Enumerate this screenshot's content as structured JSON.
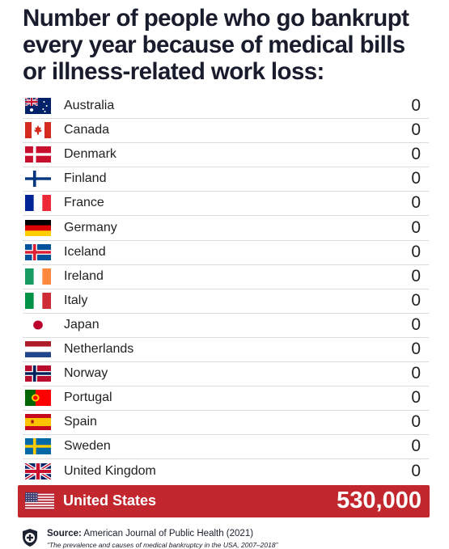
{
  "title": [
    "Number of people who go bankrupt",
    "every year because of medical bills",
    "or illness-related work loss:"
  ],
  "table": {
    "rows": [
      {
        "country": "Australia",
        "value": "0"
      },
      {
        "country": "Canada",
        "value": "0"
      },
      {
        "country": "Denmark",
        "value": "0"
      },
      {
        "country": "Finland",
        "value": "0"
      },
      {
        "country": "France",
        "value": "0"
      },
      {
        "country": "Germany",
        "value": "0"
      },
      {
        "country": "Iceland",
        "value": "0"
      },
      {
        "country": "Ireland",
        "value": "0"
      },
      {
        "country": "Italy",
        "value": "0"
      },
      {
        "country": "Japan",
        "value": "0"
      },
      {
        "country": "Netherlands",
        "value": "0"
      },
      {
        "country": "Norway",
        "value": "0"
      },
      {
        "country": "Portugal",
        "value": "0"
      },
      {
        "country": "Spain",
        "value": "0"
      },
      {
        "country": "Sweden",
        "value": "0"
      },
      {
        "country": "United Kingdom",
        "value": "0"
      }
    ],
    "highlight": {
      "country": "United States",
      "value": "530,000"
    }
  },
  "source": {
    "label": "Source:",
    "text": "American Journal of Public Health (2021)",
    "citation": "“The prevalence and causes of medical bankruptcy in the USA, 2007–2018”"
  }
}
